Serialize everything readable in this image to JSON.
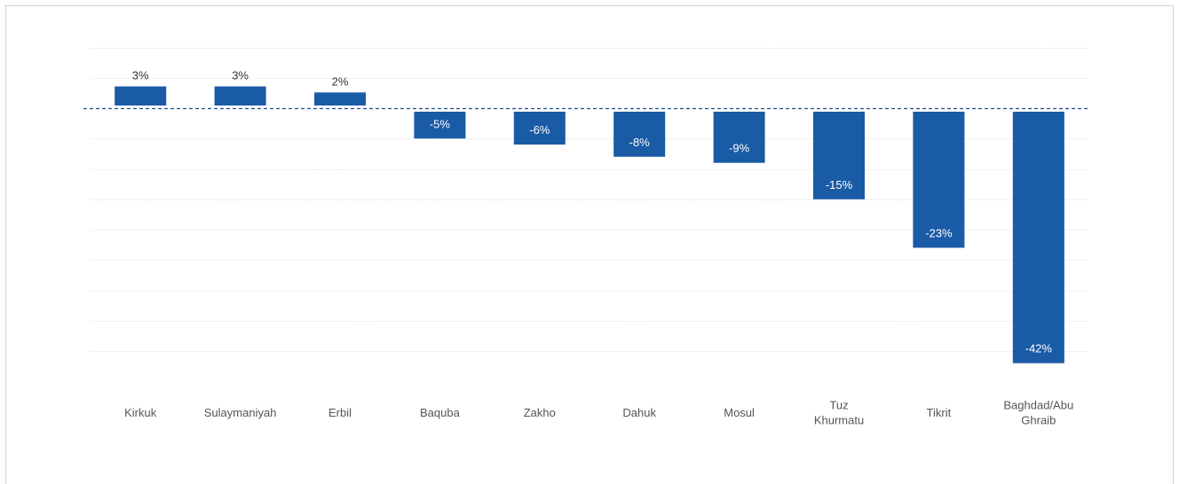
{
  "chart_data": {
    "type": "bar",
    "title": "",
    "xlabel": "",
    "ylabel": "",
    "categories": [
      [
        "Kirkuk"
      ],
      [
        "Sulaymaniyah"
      ],
      [
        "Erbil"
      ],
      [
        "Baquba"
      ],
      [
        "Zakho"
      ],
      [
        "Dahuk"
      ],
      [
        "Mosul"
      ],
      [
        "Tuz",
        "Khurmatu"
      ],
      [
        "Tikrit"
      ],
      [
        "Baghdad/Abu",
        "Ghraib"
      ]
    ],
    "values": [
      3,
      3,
      2,
      -5,
      -6,
      -8,
      -9,
      -15,
      -23,
      -42
    ],
    "labels": [
      "3%",
      "3%",
      "2%",
      "-5%",
      "-6%",
      "-8%",
      "-9%",
      "-15%",
      "-23%",
      "-42%"
    ],
    "ylim": [
      -45,
      10
    ],
    "grid": true,
    "colors": {
      "bar": "#1a5ba6",
      "zero_line": "#1f4e8c",
      "grid": "#d9d9d9"
    }
  }
}
